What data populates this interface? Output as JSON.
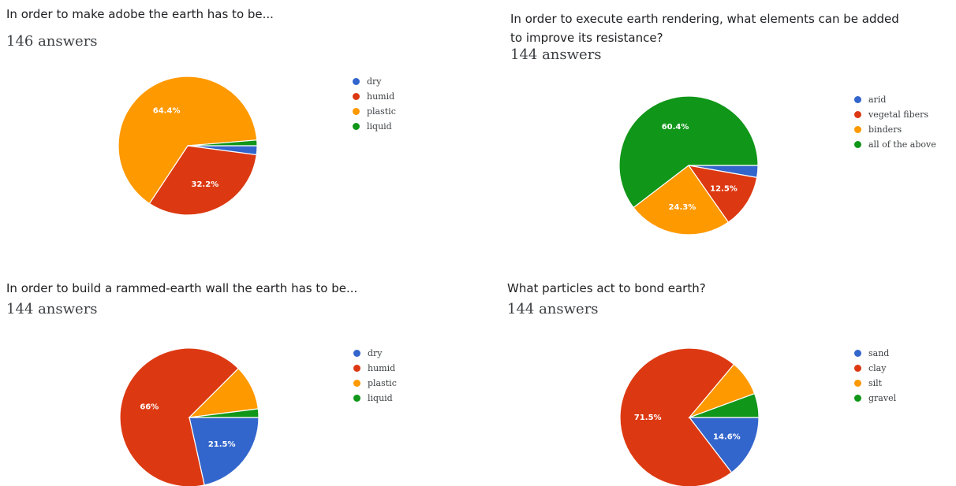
{
  "colors": {
    "blue": "#3366cc",
    "red": "#dc3912",
    "orange": "#ff9900",
    "green": "#109618"
  },
  "questions": [
    {
      "title": "In order to make adobe the earth has to be...",
      "answers": "146 answers",
      "legend": [
        "dry",
        "humid",
        "plastic",
        "liquid"
      ]
    },
    {
      "title_lines": [
        "In order to execute earth rendering, what elements can be added",
        "to improve its resistance?"
      ],
      "answers": "144 answers",
      "legend": [
        "arid",
        "vegetal fibers",
        "binders",
        "all of the above"
      ]
    },
    {
      "title": "In order to build a rammed-earth wall the earth has to be...",
      "answers": "144 answers",
      "legend": [
        "dry",
        "humid",
        "plastic",
        "liquid"
      ]
    },
    {
      "title": "What particles act to bond earth?",
      "answers": "144 answers",
      "legend": [
        "sand",
        "clay",
        "silt",
        "gravel"
      ]
    }
  ],
  "chart_data": [
    {
      "type": "pie",
      "categories": [
        "dry",
        "humid",
        "plastic",
        "liquid"
      ],
      "values": [
        2.1,
        32.2,
        64.4,
        1.3
      ],
      "data_labels": [
        "",
        "32.2%",
        "64.4%",
        ""
      ],
      "legend_position": "right"
    },
    {
      "type": "pie",
      "categories": [
        "arid",
        "vegetal fibers",
        "binders",
        "all of the above"
      ],
      "values": [
        2.8,
        12.5,
        24.3,
        60.4
      ],
      "data_labels": [
        "",
        "12.5%",
        "24.3%",
        "60.4%"
      ],
      "legend_position": "right"
    },
    {
      "type": "pie",
      "categories": [
        "dry",
        "humid",
        "plastic",
        "liquid"
      ],
      "values": [
        21.5,
        66,
        10.5,
        2
      ],
      "data_labels": [
        "21.5%",
        "66%",
        "",
        ""
      ],
      "legend_position": "right"
    },
    {
      "type": "pie",
      "categories": [
        "sand",
        "clay",
        "silt",
        "gravel"
      ],
      "values": [
        14.6,
        71.5,
        8.3,
        5.6
      ],
      "data_labels": [
        "14.6%",
        "71.5%",
        "",
        ""
      ],
      "legend_position": "right"
    }
  ]
}
